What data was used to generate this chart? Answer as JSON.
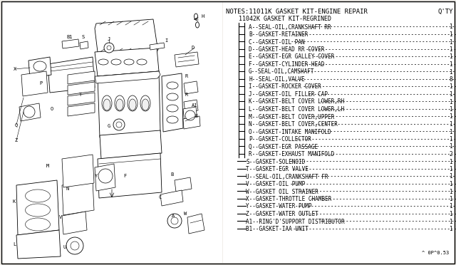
{
  "bg_color": "#f0ede8",
  "title_note": "NOTES:11011K GASKET KIT-ENGINE REPAIR",
  "qty_label": "Q'TY",
  "subtitle": "11042K GASKET KIT-REGRINED",
  "parts": [
    [
      "A",
      "SEAL-OIL,CRANKSHAFT RR",
      "1"
    ],
    [
      "B",
      "GASKET-RETAINER",
      "1"
    ],
    [
      "C",
      "GASKET-OIL PAN",
      "1"
    ],
    [
      "D",
      "GASKET-HEAD RR COVER",
      "1"
    ],
    [
      "E",
      "GASKET-EGR GALLEY COVER",
      "1"
    ],
    [
      "F",
      "GASKET-CYLINDER HEAD",
      "1"
    ],
    [
      "G",
      "SEAL-OIL,CAMSHAFT",
      "1"
    ],
    [
      "H",
      "SEAL-OIL,VALVE",
      "8"
    ],
    [
      "I",
      "GASKET-ROCKER COVER",
      "1"
    ],
    [
      "J",
      "GASKET-OIL FILLER CAP",
      "1"
    ],
    [
      "K",
      "GASKET-BELT COVER LOWER,RH",
      "1"
    ],
    [
      "L",
      "GASKET-BELT COVER LOWER,LH",
      "1"
    ],
    [
      "M",
      "GASKET-BELT COVER,UPPER",
      "1"
    ],
    [
      "N",
      "GASKET-BELT COVER,CENTER",
      "1"
    ],
    [
      "O",
      "GASKET-INTAKE MANIFOLD",
      "1"
    ],
    [
      "P",
      "GASKET-COLLECTOR",
      "1"
    ],
    [
      "Q",
      "GASKET-EGR PASSAGE",
      "1"
    ],
    [
      "R",
      "GASKET-EXHAUST MANIFOLD",
      "2"
    ],
    [
      "S",
      "GASKET-SOLENOID",
      "1"
    ],
    [
      "T",
      "GASKET-EGR VALVE",
      "1"
    ],
    [
      "U",
      "SEAL-OIL,CRANKSHAFT FR",
      "1"
    ],
    [
      "V",
      "GASKET-OIL PUMP",
      "1"
    ],
    [
      "W",
      "GASKET OIL STRAINER",
      "1"
    ],
    [
      "X",
      "GASKET-THROTTLE CHAMBER",
      "1"
    ],
    [
      "Y",
      "GASKET-WATER PUMP",
      "1"
    ],
    [
      "Z",
      "GASKET-WATER OUTLET",
      "1"
    ],
    [
      "A1",
      "RING'D'SUPPORT DISTRIBUTOR",
      "1"
    ],
    [
      "B1",
      "GASKET-IAA UNIT",
      "1"
    ]
  ],
  "footer": "^ 0P^0.53",
  "text_color": "#000000",
  "diagram_labels": [
    [
      "B1",
      88,
      57
    ],
    [
      "S",
      108,
      57
    ],
    [
      "J",
      148,
      60
    ],
    [
      "H",
      252,
      22
    ],
    [
      "I",
      222,
      60
    ],
    [
      "D",
      262,
      78
    ],
    [
      "A1",
      262,
      148
    ],
    [
      "E",
      265,
      160
    ],
    [
      "R",
      275,
      120
    ],
    [
      "R",
      278,
      138
    ],
    [
      "X",
      22,
      100
    ],
    [
      "P",
      108,
      118
    ],
    [
      "T",
      110,
      135
    ],
    [
      "O",
      80,
      155
    ],
    [
      "Q",
      22,
      178
    ],
    [
      "Z",
      22,
      200
    ],
    [
      "M",
      65,
      238
    ],
    [
      "N",
      92,
      262
    ],
    [
      "F",
      175,
      238
    ],
    [
      "Y",
      132,
      238
    ],
    [
      "K",
      72,
      290
    ],
    [
      "L",
      75,
      315
    ],
    [
      "U",
      100,
      320
    ],
    [
      "V",
      148,
      285
    ],
    [
      "C",
      222,
      280
    ],
    [
      "B",
      252,
      252
    ],
    [
      "W",
      258,
      308
    ],
    [
      "A",
      228,
      305
    ],
    [
      "G",
      162,
      168
    ]
  ]
}
